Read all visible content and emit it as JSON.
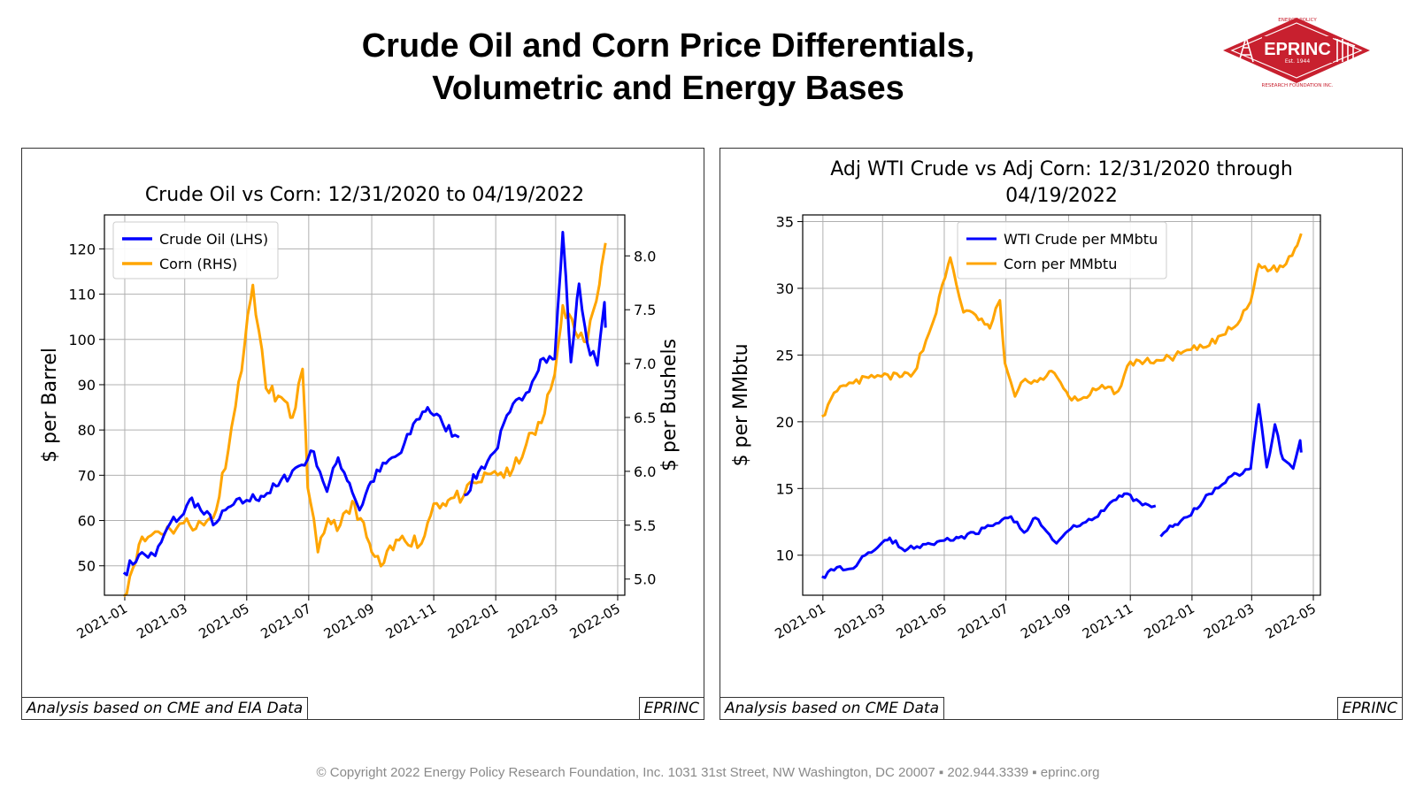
{
  "page": {
    "title_line1": "Crude Oil and Corn Price Differentials,",
    "title_line2": "Volumetric and Energy Bases",
    "footer": "© Copyright 2022 Energy Policy Research Foundation, Inc. 1031 31st Street, NW Washington, DC 20007 ▪ 202.944.3339 ▪ eprinc.org"
  },
  "logo": {
    "name": "EPRINC",
    "est": "Est. 1944",
    "ring_top": "ENERGY POLICY",
    "ring_bottom": "RESEARCH FOUNDATION INC.",
    "color": "#c8202f"
  },
  "chart_data": [
    {
      "type": "line",
      "title": "Crude Oil vs Corn: 12/31/2020 to 04/19/2022",
      "ylabel": "$ per Barrel",
      "ylabel_right": "$ per Bushels",
      "ylim": [
        43.5,
        127.5
      ],
      "ylim_right": [
        4.85,
        8.38
      ],
      "yticks": [
        50,
        60,
        70,
        80,
        90,
        100,
        110,
        120
      ],
      "yticks_right": [
        "5.0",
        "5.5",
        "6.0",
        "6.5",
        "7.0",
        "7.5",
        "8.0"
      ],
      "xticks": [
        "2021-01",
        "2021-03",
        "2021-05",
        "2021-07",
        "2021-09",
        "2021-11",
        "2022-01",
        "2022-03",
        "2022-05"
      ],
      "grid": true,
      "legend_position": "top-left",
      "credit": "Analysis based on CME and EIA Data",
      "brand": "EPRINC",
      "series": [
        {
          "name": "Crude Oil (LHS)",
          "axis": "left",
          "color": "#0000ff",
          "points": [
            [
              "2020-12-31",
              48.5
            ],
            [
              "2021-01-15",
              52.4
            ],
            [
              "2021-01-31",
              52.2
            ],
            [
              "2021-02-15",
              59.5
            ],
            [
              "2021-02-28",
              61.5
            ],
            [
              "2021-03-08",
              65.0
            ],
            [
              "2021-03-20",
              61.4
            ],
            [
              "2021-04-01",
              59.5
            ],
            [
              "2021-04-15",
              63.1
            ],
            [
              "2021-05-01",
              64.5
            ],
            [
              "2021-05-15",
              65.4
            ],
            [
              "2021-06-01",
              67.7
            ],
            [
              "2021-06-15",
              71.0
            ],
            [
              "2021-06-30",
              73.5
            ],
            [
              "2021-07-06",
              75.2
            ],
            [
              "2021-07-19",
              66.4
            ],
            [
              "2021-07-30",
              73.9
            ],
            [
              "2021-08-10",
              68.3
            ],
            [
              "2021-08-20",
              62.3
            ],
            [
              "2021-08-31",
              68.5
            ],
            [
              "2021-09-15",
              72.6
            ],
            [
              "2021-09-30",
              75.0
            ],
            [
              "2021-10-15",
              82.3
            ],
            [
              "2021-10-26",
              85.0
            ],
            [
              "2021-11-10",
              81.3
            ],
            [
              "2021-11-26",
              78.4
            ],
            [
              "2021-12-01",
              65.6
            ],
            [
              "2021-12-15",
              70.7
            ],
            [
              "2021-12-31",
              75.2
            ],
            [
              "2022-01-15",
              84.0
            ],
            [
              "2022-01-31",
              88.2
            ],
            [
              "2022-02-14",
              95.5
            ],
            [
              "2022-02-28",
              95.7
            ],
            [
              "2022-03-08",
              123.7
            ],
            [
              "2022-03-16",
              95.0
            ],
            [
              "2022-03-24",
              112.3
            ],
            [
              "2022-04-01",
              99.3
            ],
            [
              "2022-04-11",
              94.3
            ],
            [
              "2022-04-18",
              108.2
            ],
            [
              "2022-04-19",
              102.6
            ]
          ],
          "gaps_after": [
            "2021-11-26"
          ]
        },
        {
          "name": "Corn (RHS)",
          "axis": "right",
          "color": "#ffa500",
          "points": [
            [
              "2020-12-31",
              4.84
            ],
            [
              "2021-01-15",
              5.32
            ],
            [
              "2021-01-31",
              5.44
            ],
            [
              "2021-02-15",
              5.46
            ],
            [
              "2021-02-28",
              5.52
            ],
            [
              "2021-03-20",
              5.5
            ],
            [
              "2021-04-01",
              5.64
            ],
            [
              "2021-04-20",
              6.6
            ],
            [
              "2021-05-07",
              7.73
            ],
            [
              "2021-05-20",
              6.77
            ],
            [
              "2021-06-01",
              6.7
            ],
            [
              "2021-06-15",
              6.5
            ],
            [
              "2021-06-25",
              6.95
            ],
            [
              "2021-06-30",
              5.85
            ],
            [
              "2021-07-10",
              5.25
            ],
            [
              "2021-07-20",
              5.56
            ],
            [
              "2021-08-01",
              5.5
            ],
            [
              "2021-08-15",
              5.7
            ],
            [
              "2021-09-01",
              5.25
            ],
            [
              "2021-09-10",
              5.12
            ],
            [
              "2021-10-01",
              5.4
            ],
            [
              "2021-10-20",
              5.33
            ],
            [
              "2021-11-01",
              5.7
            ],
            [
              "2021-11-15",
              5.73
            ],
            [
              "2021-12-01",
              5.78
            ],
            [
              "2021-12-15",
              5.9
            ],
            [
              "2021-12-31",
              6.0
            ],
            [
              "2022-01-15",
              5.96
            ],
            [
              "2022-01-31",
              6.25
            ],
            [
              "2022-02-15",
              6.45
            ],
            [
              "2022-02-28",
              6.9
            ],
            [
              "2022-03-08",
              7.54
            ],
            [
              "2022-03-20",
              7.3
            ],
            [
              "2022-04-01",
              7.2
            ],
            [
              "2022-04-15",
              7.9
            ],
            [
              "2022-04-19",
              8.12
            ]
          ]
        }
      ]
    },
    {
      "type": "line",
      "title": "Adj WTI Crude vs Adj Corn: 12/31/2020 through 04/19/2022",
      "ylabel": "$ per MMbtu",
      "ylim": [
        7.0,
        35.5
      ],
      "yticks": [
        10,
        15,
        20,
        25,
        30,
        35
      ],
      "xticks": [
        "2021-01",
        "2021-03",
        "2021-05",
        "2021-07",
        "2021-09",
        "2021-11",
        "2022-01",
        "2022-03",
        "2022-05"
      ],
      "grid": true,
      "legend_position": "top-center",
      "credit": "Analysis based on CME Data",
      "brand": "EPRINC",
      "series": [
        {
          "name": "WTI Crude per MMbtu",
          "color": "#0000ff",
          "points": [
            [
              "2020-12-31",
              8.4
            ],
            [
              "2021-01-15",
              9.1
            ],
            [
              "2021-01-31",
              9.0
            ],
            [
              "2021-02-15",
              10.2
            ],
            [
              "2021-02-28",
              10.9
            ],
            [
              "2021-03-08",
              11.3
            ],
            [
              "2021-03-20",
              10.5
            ],
            [
              "2021-04-01",
              10.5
            ],
            [
              "2021-04-15",
              10.9
            ],
            [
              "2021-05-01",
              11.1
            ],
            [
              "2021-05-15",
              11.3
            ],
            [
              "2021-06-01",
              11.6
            ],
            [
              "2021-06-15",
              12.2
            ],
            [
              "2021-06-30",
              12.8
            ],
            [
              "2021-07-06",
              12.9
            ],
            [
              "2021-07-19",
              11.7
            ],
            [
              "2021-07-30",
              12.8
            ],
            [
              "2021-08-10",
              11.8
            ],
            [
              "2021-08-20",
              10.9
            ],
            [
              "2021-08-31",
              11.8
            ],
            [
              "2021-09-15",
              12.4
            ],
            [
              "2021-09-30",
              12.9
            ],
            [
              "2021-10-15",
              14.1
            ],
            [
              "2021-10-26",
              14.6
            ],
            [
              "2021-11-10",
              14.0
            ],
            [
              "2021-11-26",
              13.7
            ],
            [
              "2021-12-01",
              11.4
            ],
            [
              "2021-12-15",
              12.3
            ],
            [
              "2021-12-31",
              13.0
            ],
            [
              "2022-01-15",
              14.5
            ],
            [
              "2022-01-31",
              15.3
            ],
            [
              "2022-02-14",
              16.1
            ],
            [
              "2022-02-28",
              16.5
            ],
            [
              "2022-03-08",
              21.3
            ],
            [
              "2022-03-16",
              16.6
            ],
            [
              "2022-03-24",
              19.8
            ],
            [
              "2022-04-01",
              17.2
            ],
            [
              "2022-04-11",
              16.5
            ],
            [
              "2022-04-18",
              18.6
            ],
            [
              "2022-04-19",
              17.7
            ]
          ],
          "gaps_after": [
            "2021-11-26"
          ]
        },
        {
          "name": "Corn per MMbtu",
          "color": "#ffa500",
          "points": [
            [
              "2020-12-31",
              20.4
            ],
            [
              "2021-01-15",
              22.3
            ],
            [
              "2021-01-31",
              22.9
            ],
            [
              "2021-02-15",
              23.3
            ],
            [
              "2021-02-28",
              23.4
            ],
            [
              "2021-03-20",
              23.4
            ],
            [
              "2021-04-01",
              23.7
            ],
            [
              "2021-04-20",
              27.5
            ],
            [
              "2021-05-07",
              32.3
            ],
            [
              "2021-05-20",
              28.2
            ],
            [
              "2021-06-01",
              28.0
            ],
            [
              "2021-06-15",
              27.0
            ],
            [
              "2021-06-25",
              29.1
            ],
            [
              "2021-06-30",
              24.4
            ],
            [
              "2021-07-10",
              21.9
            ],
            [
              "2021-07-20",
              23.2
            ],
            [
              "2021-08-01",
              23.0
            ],
            [
              "2021-08-15",
              23.8
            ],
            [
              "2021-09-01",
              21.9
            ],
            [
              "2021-09-10",
              21.6
            ],
            [
              "2021-10-01",
              22.5
            ],
            [
              "2021-10-20",
              22.3
            ],
            [
              "2021-11-01",
              24.5
            ],
            [
              "2021-11-15",
              24.5
            ],
            [
              "2021-12-01",
              24.6
            ],
            [
              "2021-12-15",
              24.9
            ],
            [
              "2021-12-31",
              25.4
            ],
            [
              "2022-01-15",
              25.6
            ],
            [
              "2022-01-31",
              26.5
            ],
            [
              "2022-02-15",
              27.3
            ],
            [
              "2022-02-28",
              29.0
            ],
            [
              "2022-03-08",
              31.8
            ],
            [
              "2022-03-20",
              31.4
            ],
            [
              "2022-04-01",
              31.6
            ],
            [
              "2022-04-15",
              33.2
            ],
            [
              "2022-04-19",
              34.1
            ]
          ]
        }
      ]
    }
  ]
}
